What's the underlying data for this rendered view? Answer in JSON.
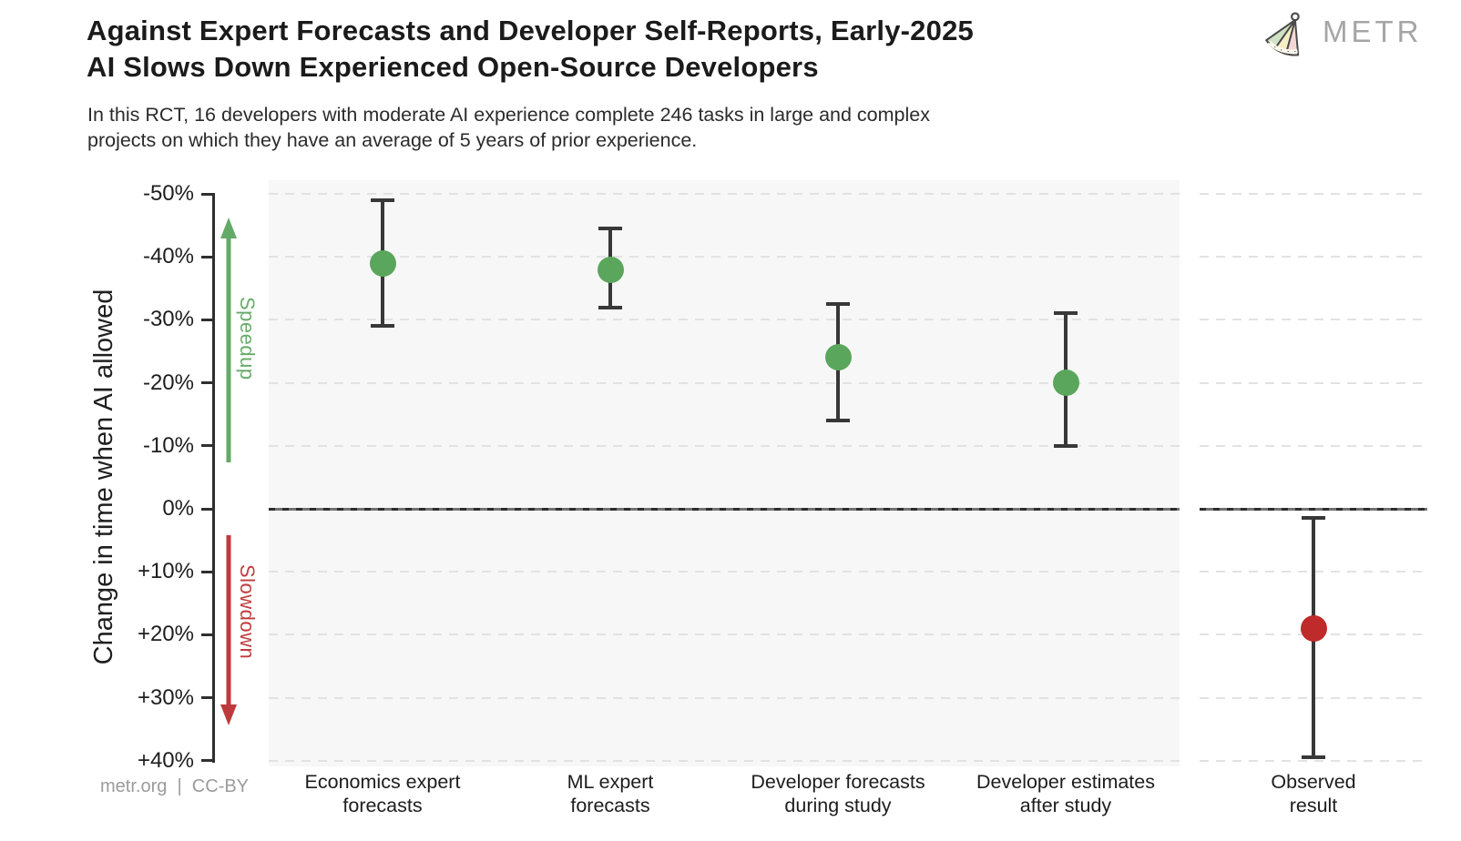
{
  "header": {
    "title_line1": "Against Expert Forecasts and Developer Self-Reports, Early-2025",
    "title_line2": "AI Slows Down Experienced Open-Source Developers",
    "subtitle_line1": "In this RCT, 16 developers with moderate AI experience complete 246 tasks in large and complex",
    "subtitle_line2": "projects on which they have an average of 5 years of prior experience.",
    "brand": "METR"
  },
  "footer": {
    "credit": "metr.org  |  CC-BY"
  },
  "colors": {
    "speedup_green": "#5aa65c",
    "slowdown_red": "#bf2a2a",
    "arrow_green": "#63aa66",
    "arrow_red": "#bf3a3c",
    "errorbar_dark": "#383838",
    "panel_bg": "#f7f7f7",
    "grid_gray": "#e2e2e2",
    "brand_gray": "#a5a5a5"
  },
  "chart_data": {
    "type": "scatter",
    "subtype": "point-estimates-with-95pct-confidence-intervals",
    "ylabel": "Change in time when AI allowed",
    "y_axis": {
      "min": -50,
      "max": 40,
      "step": 10,
      "inverted_negative_up": true,
      "tick_labels": [
        "-50%",
        "-40%",
        "-30%",
        "-20%",
        "-10%",
        "0%",
        "+10%",
        "+20%",
        "+30%",
        "+40%"
      ],
      "zero_line": "solid dark dashed overlay",
      "grid": "dashed light gray every 10%"
    },
    "annotations": {
      "speedup": {
        "label": "Speedup",
        "direction": "up",
        "region": "negative values above zero line"
      },
      "slowdown": {
        "label": "Slowdown",
        "direction": "down",
        "region": "positive values below zero line"
      }
    },
    "panels": [
      {
        "name": "forecasts",
        "background": "#f7f7f7"
      },
      {
        "name": "observed",
        "background": "#ffffff"
      }
    ],
    "points": [
      {
        "category": "Economics expert\nforecasts",
        "panel": 0,
        "value": -39,
        "ci": [
          -49,
          -29
        ],
        "color": "#5aa65c"
      },
      {
        "category": "ML expert\nforecasts",
        "panel": 0,
        "value": -38,
        "ci": [
          -44.5,
          -32
        ],
        "color": "#5aa65c"
      },
      {
        "category": "Developer forecasts\nduring study",
        "panel": 0,
        "value": -24,
        "ci": [
          -32.5,
          -14
        ],
        "color": "#5aa65c"
      },
      {
        "category": "Developer estimates\nafter study",
        "panel": 0,
        "value": -20,
        "ci": [
          -31,
          -10
        ],
        "color": "#5aa65c"
      },
      {
        "category": "Observed\nresult",
        "panel": 1,
        "value": 19,
        "ci": [
          1.5,
          39.5
        ],
        "color": "#bf2a2a"
      }
    ],
    "units": "percent change in completion time when AI is allowed"
  }
}
